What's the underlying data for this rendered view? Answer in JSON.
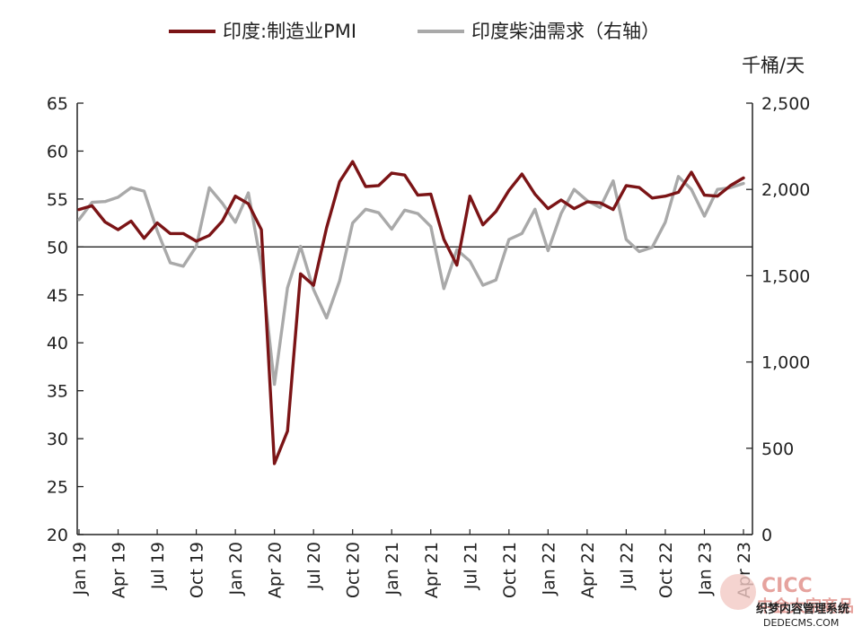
{
  "chart_data": {
    "type": "line",
    "legend_position": "top",
    "right_axis_unit": "千桶/天",
    "x": [
      "Jan 19",
      "Feb 19",
      "Mar 19",
      "Apr 19",
      "May 19",
      "Jun 19",
      "Jul 19",
      "Aug 19",
      "Sep 19",
      "Oct 19",
      "Nov 19",
      "Dec 19",
      "Jan 20",
      "Feb 20",
      "Mar 20",
      "Apr 20",
      "May 20",
      "Jun 20",
      "Jul 20",
      "Aug 20",
      "Sep 20",
      "Oct 20",
      "Nov 20",
      "Dec 20",
      "Jan 21",
      "Feb 21",
      "Mar 21",
      "Apr 21",
      "May 21",
      "Jun 21",
      "Jul 21",
      "Aug 21",
      "Sep 21",
      "Oct 21",
      "Nov 21",
      "Dec 21",
      "Jan 22",
      "Feb 22",
      "Mar 22",
      "Apr 22",
      "May 22",
      "Jun 22",
      "Jul 22",
      "Aug 22",
      "Sep 22",
      "Oct 22",
      "Nov 22",
      "Dec 22",
      "Jan 23",
      "Feb 23",
      "Mar 23",
      "Apr 23"
    ],
    "x_tick_labels": [
      "Jan 19",
      "Apr 19",
      "Jul 19",
      "Oct 19",
      "Jan 20",
      "Apr 20",
      "Jul 20",
      "Oct 20",
      "Jan 21",
      "Apr 21",
      "Jul 21",
      "Oct 21",
      "Jan 22",
      "Apr 22",
      "Jul 22",
      "Oct 22",
      "Jan 23",
      "Apr 23"
    ],
    "left_axis": {
      "ylim": [
        20,
        65
      ],
      "ticks": [
        "20",
        "25",
        "30",
        "35",
        "40",
        "45",
        "50",
        "55",
        "60",
        "65"
      ]
    },
    "right_axis": {
      "ylim": [
        0,
        2500
      ],
      "ticks": [
        "0",
        "500",
        "1,000",
        "1,500",
        "2,000",
        "2,500"
      ]
    },
    "reference_line": 50,
    "series": [
      {
        "name": "印度:制造业PMI",
        "axis": "left",
        "color": "#7b1416",
        "values": [
          53.9,
          54.3,
          52.6,
          51.8,
          52.7,
          50.9,
          52.5,
          51.4,
          51.4,
          50.6,
          51.2,
          52.7,
          55.3,
          54.5,
          51.8,
          27.4,
          30.8,
          47.2,
          46.0,
          52.0,
          56.8,
          58.9,
          56.3,
          56.4,
          57.7,
          57.5,
          55.4,
          55.5,
          50.8,
          48.1,
          55.3,
          52.3,
          53.7,
          55.9,
          57.6,
          55.5,
          54.0,
          54.9,
          54.0,
          54.7,
          54.6,
          53.9,
          56.4,
          56.2,
          55.1,
          55.3,
          55.7,
          57.8,
          55.4,
          55.3,
          56.4,
          57.2
        ]
      },
      {
        "name": "印度柴油需求（右轴）",
        "axis": "right",
        "color": "#a9a9a9",
        "values": [
          1825,
          1925,
          1930,
          1955,
          2010,
          1990,
          1760,
          1575,
          1555,
          1670,
          2010,
          1920,
          1810,
          1980,
          1560,
          870,
          1430,
          1670,
          1420,
          1255,
          1470,
          1805,
          1885,
          1865,
          1770,
          1880,
          1860,
          1785,
          1425,
          1650,
          1585,
          1445,
          1475,
          1710,
          1745,
          1885,
          1645,
          1860,
          2000,
          1935,
          1895,
          2050,
          1710,
          1640,
          1665,
          1810,
          2075,
          2000,
          1845,
          2000,
          2010,
          2035
        ]
      }
    ]
  },
  "watermark": {
    "brand": "CICC",
    "brand_cn": "中金大宗商品",
    "site_cn": "织梦内容管理系统",
    "site": "DEDECMS.COM"
  }
}
